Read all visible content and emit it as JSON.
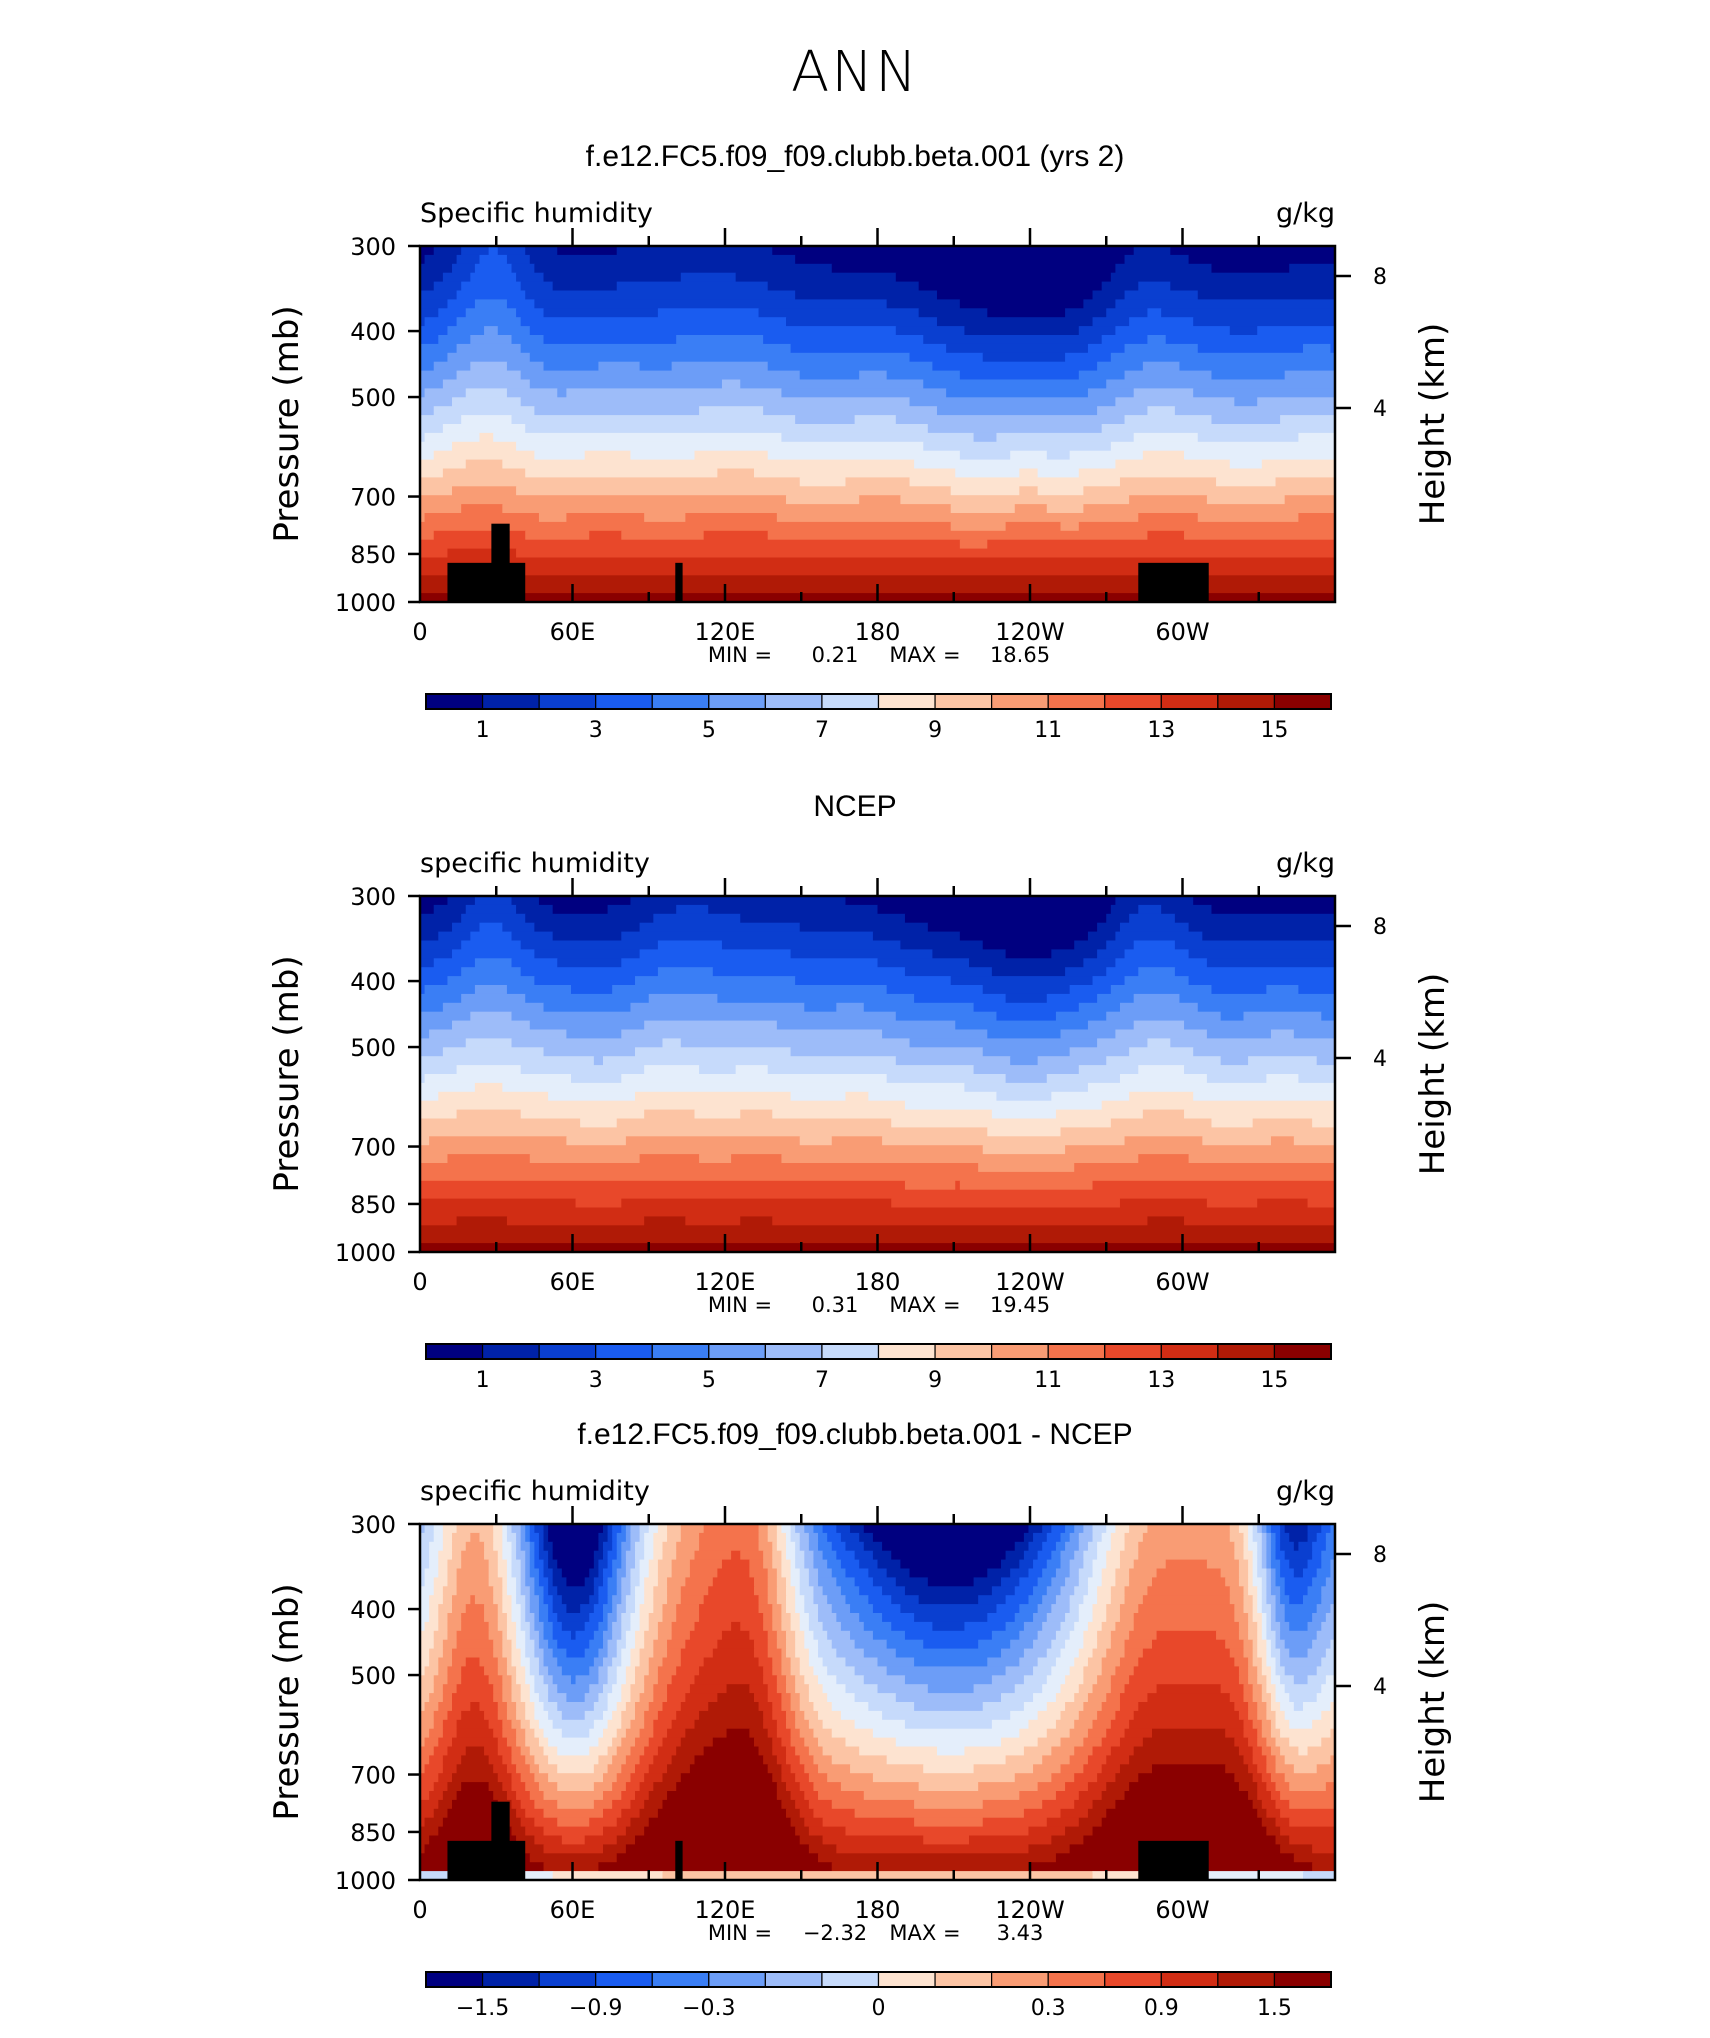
{
  "page_title": "ANN",
  "chart_data": [
    {
      "type": "heatmap",
      "title": "f.e12.FC5.f09_f09.clubb.beta.001 (yrs 2)",
      "variable_label": "Specific humidity",
      "units": "g/kg",
      "ylabel": "Pressure (mb)",
      "y2label": "Height (km)",
      "yticks": [
        300,
        400,
        500,
        700,
        850,
        1000
      ],
      "y2ticks": [
        8,
        4
      ],
      "xticks": [
        "0",
        "60E",
        "120E",
        "180",
        "120W",
        "60W"
      ],
      "min_label": "MIN =",
      "min_value": "0.21",
      "max_label": "MAX =",
      "max_value": "18.65",
      "colorbar_labels": [
        "1",
        "3",
        "5",
        "7",
        "9",
        "11",
        "13",
        "15"
      ]
    },
    {
      "type": "heatmap",
      "title": "NCEP",
      "variable_label": "specific humidity",
      "units": "g/kg",
      "ylabel": "Pressure (mb)",
      "y2label": "Height (km)",
      "yticks": [
        300,
        400,
        500,
        700,
        850,
        1000
      ],
      "y2ticks": [
        8,
        4
      ],
      "xticks": [
        "0",
        "60E",
        "120E",
        "180",
        "120W",
        "60W"
      ],
      "min_label": "MIN =",
      "min_value": "0.31",
      "max_label": "MAX =",
      "max_value": "19.45",
      "colorbar_labels": [
        "1",
        "3",
        "5",
        "7",
        "9",
        "11",
        "13",
        "15"
      ]
    },
    {
      "type": "heatmap",
      "title": "f.e12.FC5.f09_f09.clubb.beta.001 - NCEP",
      "variable_label": "specific humidity",
      "units": "g/kg",
      "ylabel": "Pressure (mb)",
      "y2label": "Height (km)",
      "yticks": [
        300,
        400,
        500,
        700,
        850,
        1000
      ],
      "y2ticks": [
        8,
        4
      ],
      "xticks": [
        "0",
        "60E",
        "120E",
        "180",
        "120W",
        "60W"
      ],
      "min_label": "MIN =",
      "min_value": "−2.32",
      "max_label": "MAX =",
      "max_value": "3.43",
      "colorbar_labels": [
        "−1.5",
        "−0.9",
        "−0.3",
        "0",
        "0.3",
        "0.9",
        "1.5"
      ]
    }
  ],
  "colors": {
    "palette": [
      "#000080",
      "#0022a8",
      "#0a3fd0",
      "#1a5cf0",
      "#3a7ef5",
      "#6c9df7",
      "#9dbcf9",
      "#c6dafb",
      "#e4eefb",
      "#fde3d0",
      "#fcc4a4",
      "#f99c74",
      "#f4734c",
      "#e8482a",
      "#d12d14",
      "#b01a06",
      "#8a0000"
    ],
    "land": "#000000"
  }
}
